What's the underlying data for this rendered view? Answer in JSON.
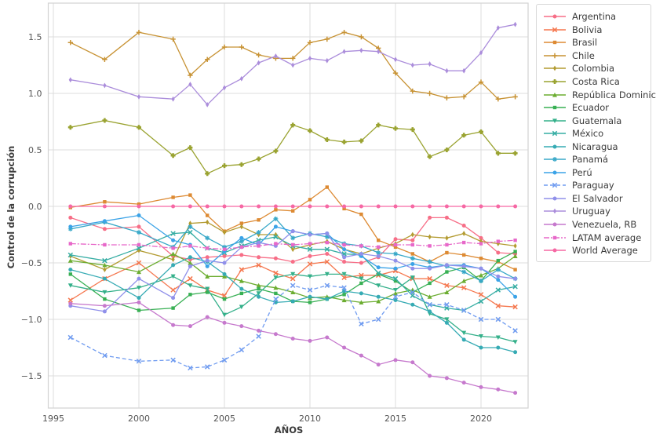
{
  "chart_data": {
    "type": "line",
    "title": "",
    "xlabel": "AÑOS",
    "ylabel": "Control de la corrupción",
    "grid": true,
    "legend_position": "outside upper right",
    "background": "#ffffff",
    "grid_color": "#dcdcdc",
    "frame_color": "#d3d3d3",
    "tick_color": "#555555",
    "xlim": [
      1994.7,
      2023.6
    ],
    "ylim": [
      -1.79,
      1.8
    ],
    "xticks": [
      1995,
      2000,
      2005,
      2010,
      2015,
      2020
    ],
    "xtick_labels": [
      "1995",
      "2000",
      "2005",
      "2010",
      "2015",
      "2020"
    ],
    "yticks": [
      1.5,
      1.0,
      0.5,
      0.0,
      -0.5,
      -1.0,
      -1.5
    ],
    "ytick_labels": [
      "1.5",
      "1.0",
      "0.5",
      "0.0",
      "−0.5",
      "−1.0",
      "−1.5"
    ],
    "x": [
      1996,
      1998,
      2000,
      2002,
      2003,
      2004,
      2005,
      2006,
      2007,
      2008,
      2009,
      2010,
      2011,
      2012,
      2013,
      2014,
      2015,
      2016,
      2017,
      2018,
      2019,
      2020,
      2021,
      2022
    ],
    "series": [
      {
        "name": "Argentina",
        "color": "#f76e87",
        "marker": "o",
        "dash": "",
        "values": [
          -0.1,
          -0.2,
          -0.18,
          -0.44,
          -0.47,
          -0.45,
          -0.44,
          -0.43,
          -0.45,
          -0.46,
          -0.49,
          -0.44,
          -0.42,
          -0.49,
          -0.5,
          -0.45,
          -0.29,
          -0.3,
          -0.1,
          -0.1,
          -0.17,
          -0.28,
          -0.41,
          -0.42
        ]
      },
      {
        "name": "Bolivia",
        "color": "#f5774e",
        "marker": "x",
        "dash": "",
        "values": [
          -0.83,
          -0.64,
          -0.5,
          -0.74,
          -0.64,
          -0.74,
          -0.79,
          -0.56,
          -0.52,
          -0.59,
          -0.64,
          -0.51,
          -0.49,
          -0.63,
          -0.61,
          -0.61,
          -0.57,
          -0.64,
          -0.64,
          -0.7,
          -0.72,
          -0.78,
          -0.88,
          -0.89
        ]
      },
      {
        "name": "Brasil",
        "color": "#dd8a33",
        "marker": "s",
        "dash": "",
        "values": [
          -0.01,
          0.04,
          0.02,
          0.08,
          0.1,
          -0.08,
          -0.22,
          -0.15,
          -0.12,
          -0.03,
          -0.04,
          0.06,
          0.17,
          -0.02,
          -0.07,
          -0.3,
          -0.36,
          -0.42,
          -0.49,
          -0.41,
          -0.43,
          -0.46,
          -0.49,
          -0.56
        ]
      },
      {
        "name": "Chile",
        "color": "#c79233",
        "marker": "plus",
        "dash": "",
        "values": [
          1.45,
          1.3,
          1.54,
          1.48,
          1.16,
          1.3,
          1.41,
          1.41,
          1.34,
          1.31,
          1.31,
          1.45,
          1.48,
          1.54,
          1.5,
          1.4,
          1.18,
          1.02,
          1.0,
          0.96,
          0.97,
          1.1,
          0.95,
          0.97
        ]
      },
      {
        "name": "Colombia",
        "color": "#b39b31",
        "marker": "d",
        "dash": "",
        "values": [
          -0.44,
          -0.56,
          -0.39,
          -0.47,
          -0.15,
          -0.14,
          -0.23,
          -0.18,
          -0.25,
          -0.25,
          -0.38,
          -0.34,
          -0.31,
          -0.38,
          -0.42,
          -0.37,
          -0.33,
          -0.25,
          -0.27,
          -0.28,
          -0.24,
          -0.31,
          -0.33,
          -0.35
        ]
      },
      {
        "name": "Costa Rica",
        "color": "#9aa331",
        "marker": "P",
        "dash": "",
        "values": [
          0.7,
          0.76,
          0.7,
          0.45,
          0.52,
          0.29,
          0.36,
          0.37,
          0.42,
          0.49,
          0.72,
          0.67,
          0.59,
          0.57,
          0.58,
          0.72,
          0.69,
          0.68,
          0.44,
          0.5,
          0.63,
          0.66,
          0.47,
          0.47
        ]
      },
      {
        "name": "República Dominicana",
        "color": "#6cad31",
        "marker": "tu",
        "dash": "",
        "values": [
          -0.48,
          -0.52,
          -0.58,
          -0.42,
          -0.5,
          -0.62,
          -0.62,
          -0.66,
          -0.7,
          -0.72,
          -0.76,
          -0.81,
          -0.8,
          -0.83,
          -0.85,
          -0.84,
          -0.77,
          -0.74,
          -0.8,
          -0.76,
          -0.66,
          -0.61,
          -0.55,
          -0.44
        ]
      },
      {
        "name": "Ecuador",
        "color": "#38b054",
        "marker": "s",
        "dash": "",
        "values": [
          -0.6,
          -0.82,
          -0.92,
          -0.9,
          -0.78,
          -0.76,
          -0.82,
          -0.77,
          -0.73,
          -0.77,
          -0.84,
          -0.85,
          -0.82,
          -0.78,
          -0.68,
          -0.6,
          -0.66,
          -0.76,
          -0.68,
          -0.58,
          -0.54,
          -0.66,
          -0.48,
          -0.4
        ]
      },
      {
        "name": "Guatemala",
        "color": "#34b08a",
        "marker": "td",
        "dash": "",
        "values": [
          -0.7,
          -0.76,
          -0.72,
          -0.62,
          -0.7,
          -0.73,
          -0.96,
          -0.89,
          -0.77,
          -0.63,
          -0.6,
          -0.62,
          -0.6,
          -0.6,
          -0.64,
          -0.7,
          -0.74,
          -0.63,
          -0.95,
          -1.0,
          -1.12,
          -1.15,
          -1.16,
          -1.2
        ]
      },
      {
        "name": "México",
        "color": "#35ada3",
        "marker": "x",
        "dash": "",
        "values": [
          -0.43,
          -0.48,
          -0.37,
          -0.24,
          -0.23,
          -0.37,
          -0.41,
          -0.35,
          -0.3,
          -0.27,
          -0.35,
          -0.38,
          -0.38,
          -0.42,
          -0.43,
          -0.59,
          -0.64,
          -0.79,
          -0.87,
          -0.9,
          -0.92,
          -0.84,
          -0.74,
          -0.71
        ]
      },
      {
        "name": "Nicaragua",
        "color": "#36abb4",
        "marker": "o",
        "dash": "",
        "values": [
          -0.56,
          -0.64,
          -0.81,
          -0.52,
          -0.45,
          -0.49,
          -0.6,
          -0.73,
          -0.8,
          -0.85,
          -0.84,
          -0.8,
          -0.82,
          -0.75,
          -0.77,
          -0.8,
          -0.83,
          -0.87,
          -0.93,
          -1.03,
          -1.18,
          -1.25,
          -1.25,
          -1.29
        ]
      },
      {
        "name": "Panamá",
        "color": "#38a8c8",
        "marker": "star",
        "dash": "",
        "values": [
          -0.2,
          -0.14,
          -0.23,
          -0.36,
          -0.18,
          -0.28,
          -0.36,
          -0.31,
          -0.23,
          -0.11,
          -0.28,
          -0.24,
          -0.27,
          -0.33,
          -0.35,
          -0.41,
          -0.42,
          -0.46,
          -0.49,
          -0.53,
          -0.58,
          -0.66,
          -0.56,
          -0.64
        ]
      },
      {
        "name": "Perú",
        "color": "#3ba3e7",
        "marker": "o",
        "dash": "",
        "values": [
          -0.18,
          -0.13,
          -0.08,
          -0.3,
          -0.34,
          -0.53,
          -0.4,
          -0.28,
          -0.34,
          -0.18,
          -0.22,
          -0.25,
          -0.24,
          -0.38,
          -0.44,
          -0.54,
          -0.55,
          -0.51,
          -0.54,
          -0.52,
          -0.52,
          -0.55,
          -0.65,
          -0.8
        ]
      },
      {
        "name": "Paraguay",
        "color": "#6f9bf0",
        "marker": "x",
        "dash": "5 3",
        "values": [
          -1.16,
          -1.32,
          -1.37,
          -1.36,
          -1.43,
          -1.42,
          -1.36,
          -1.27,
          -1.15,
          -0.82,
          -0.7,
          -0.74,
          -0.7,
          -0.72,
          -1.04,
          -1.0,
          -0.8,
          -0.76,
          -0.87,
          -0.87,
          -0.92,
          -1.0,
          -1.0,
          -1.1
        ]
      },
      {
        "name": "El Salvador",
        "color": "#9090ea",
        "marker": "o",
        "dash": "",
        "values": [
          -0.88,
          -0.93,
          -0.64,
          -0.81,
          -0.53,
          -0.48,
          -0.5,
          -0.36,
          -0.32,
          -0.35,
          -0.22,
          -0.25,
          -0.24,
          -0.45,
          -0.42,
          -0.44,
          -0.48,
          -0.55,
          -0.55,
          -0.52,
          -0.53,
          -0.55,
          -0.62,
          -0.64
        ]
      },
      {
        "name": "Uruguay",
        "color": "#ab8ddb",
        "marker": "d",
        "dash": "",
        "values": [
          1.12,
          1.07,
          0.97,
          0.95,
          1.08,
          0.9,
          1.05,
          1.13,
          1.27,
          1.33,
          1.25,
          1.31,
          1.29,
          1.37,
          1.38,
          1.37,
          1.3,
          1.25,
          1.26,
          1.2,
          1.2,
          1.36,
          1.58,
          1.61
        ]
      },
      {
        "name": "Venezuela, RB",
        "color": "#c679cd",
        "marker": "o",
        "dash": "",
        "values": [
          -0.86,
          -0.88,
          -0.85,
          -1.05,
          -1.06,
          -0.98,
          -1.03,
          -1.06,
          -1.1,
          -1.13,
          -1.17,
          -1.19,
          -1.16,
          -1.25,
          -1.32,
          -1.4,
          -1.36,
          -1.38,
          -1.5,
          -1.52,
          -1.56,
          -1.6,
          -1.62,
          -1.65
        ]
      },
      {
        "name": "LATAM average",
        "color": "#e768c9",
        "marker": "s",
        "dash": "7 2 2 2",
        "values": [
          -0.33,
          -0.34,
          -0.34,
          -0.37,
          -0.35,
          -0.37,
          -0.38,
          -0.36,
          -0.35,
          -0.33,
          -0.34,
          -0.33,
          -0.32,
          -0.34,
          -0.35,
          -0.36,
          -0.34,
          -0.34,
          -0.35,
          -0.34,
          -0.32,
          -0.33,
          -0.31,
          -0.3
        ]
      },
      {
        "name": "World Average",
        "color": "#f668a4",
        "marker": "o",
        "dash": "",
        "values": [
          0,
          0,
          0,
          0,
          0,
          0,
          0,
          0,
          0,
          0,
          0,
          0,
          0,
          0,
          0,
          0,
          0,
          0,
          0,
          0,
          0,
          0,
          0,
          0
        ]
      }
    ]
  }
}
